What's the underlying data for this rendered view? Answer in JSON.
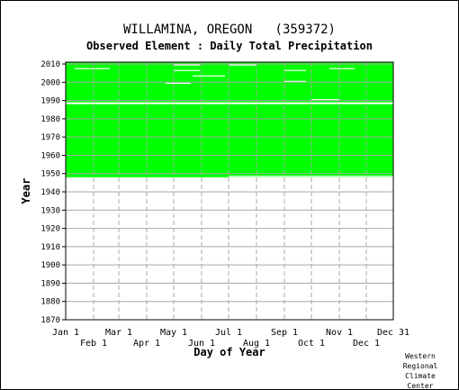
{
  "chart_data": {
    "type": "heatmap",
    "title": "WILLAMINA, OREGON   (359372)",
    "subtitle": "Observed Element : Daily Total Precipitation",
    "xlabel": "Day of Year",
    "ylabel": "Year",
    "x_domain_days": [
      1,
      365
    ],
    "ylim": [
      1870,
      2011
    ],
    "y_ticks": [
      1870,
      1880,
      1890,
      1900,
      1910,
      1920,
      1930,
      1940,
      1950,
      1960,
      1970,
      1980,
      1990,
      2000,
      2010
    ],
    "x_ticks_upper": [
      {
        "label": "Jan 1",
        "day": 1
      },
      {
        "label": "Mar 1",
        "day": 60
      },
      {
        "label": "May 1",
        "day": 121
      },
      {
        "label": "Jul 1",
        "day": 182
      },
      {
        "label": "Sep 1",
        "day": 244
      },
      {
        "label": "Nov 1",
        "day": 305
      },
      {
        "label": "Dec 31",
        "day": 365
      }
    ],
    "x_ticks_lower": [
      {
        "label": "Feb 1",
        "day": 32
      },
      {
        "label": "Apr 1",
        "day": 91
      },
      {
        "label": "Jun 1",
        "day": 152
      },
      {
        "label": "Aug 1",
        "day": 213
      },
      {
        "label": "Oct 1",
        "day": 274
      },
      {
        "label": "Dec 1",
        "day": 335
      }
    ],
    "observed_periods": [
      {
        "start_year": 1948,
        "end_year": 1987,
        "start_day": 1,
        "end_day": 365
      },
      {
        "start_year": 1989,
        "end_year": 2010,
        "start_day": 1,
        "end_day": 365
      }
    ],
    "missing_gaps": [
      {
        "year": 1988,
        "start_day": 1,
        "end_day": 365
      },
      {
        "year": 1948,
        "start_day": 182,
        "end_day": 365
      },
      {
        "year": 1999,
        "start_day": 112,
        "end_day": 140
      },
      {
        "year": 2003,
        "start_day": 142,
        "end_day": 178
      },
      {
        "year": 2006,
        "start_day": 121,
        "end_day": 150
      },
      {
        "year": 2007,
        "start_day": 11,
        "end_day": 50
      },
      {
        "year": 2007,
        "start_day": 294,
        "end_day": 322
      },
      {
        "year": 2009,
        "start_day": 182,
        "end_day": 213
      },
      {
        "year": 2009,
        "start_day": 121,
        "end_day": 150
      },
      {
        "year": 2000,
        "start_day": 244,
        "end_day": 268
      },
      {
        "year": 2006,
        "start_day": 244,
        "end_day": 268
      },
      {
        "year": 1990,
        "start_day": 274,
        "end_day": 305
      }
    ],
    "colors": {
      "observed": "#00ff00",
      "missing": "#ffffff",
      "grid": "#a8a8a8",
      "axis": "#000000"
    }
  },
  "credit": [
    "Western",
    "Regional",
    "Climate",
    "Center"
  ]
}
